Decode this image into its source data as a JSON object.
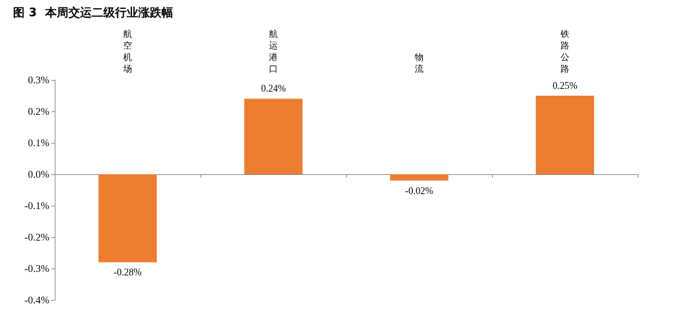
{
  "chart_data": {
    "type": "bar",
    "title": "图 3  本周交运二级行业涨跌幅",
    "categories": [
      "航空机场",
      "航运港口",
      "物流",
      "铁路公路"
    ],
    "values": [
      -0.28,
      0.24,
      -0.02,
      0.25
    ],
    "value_labels": [
      "-0.28%",
      "0.24%",
      "-0.02%",
      "0.25%"
    ],
    "color": "#ed7d31",
    "ylim": [
      -0.4,
      0.3
    ],
    "yticks": [
      {
        "value": -0.4,
        "label": "-0.4%"
      },
      {
        "value": -0.3,
        "label": "-0.3%"
      },
      {
        "value": -0.2,
        "label": "-0.2%"
      },
      {
        "value": -0.1,
        "label": "-0.1%"
      },
      {
        "value": 0,
        "label": "0.0%"
      },
      {
        "value": 0.1,
        "label": "0.1%"
      },
      {
        "value": 0.2,
        "label": "0.2%"
      },
      {
        "value": 0.3,
        "label": "0.3%"
      }
    ]
  }
}
